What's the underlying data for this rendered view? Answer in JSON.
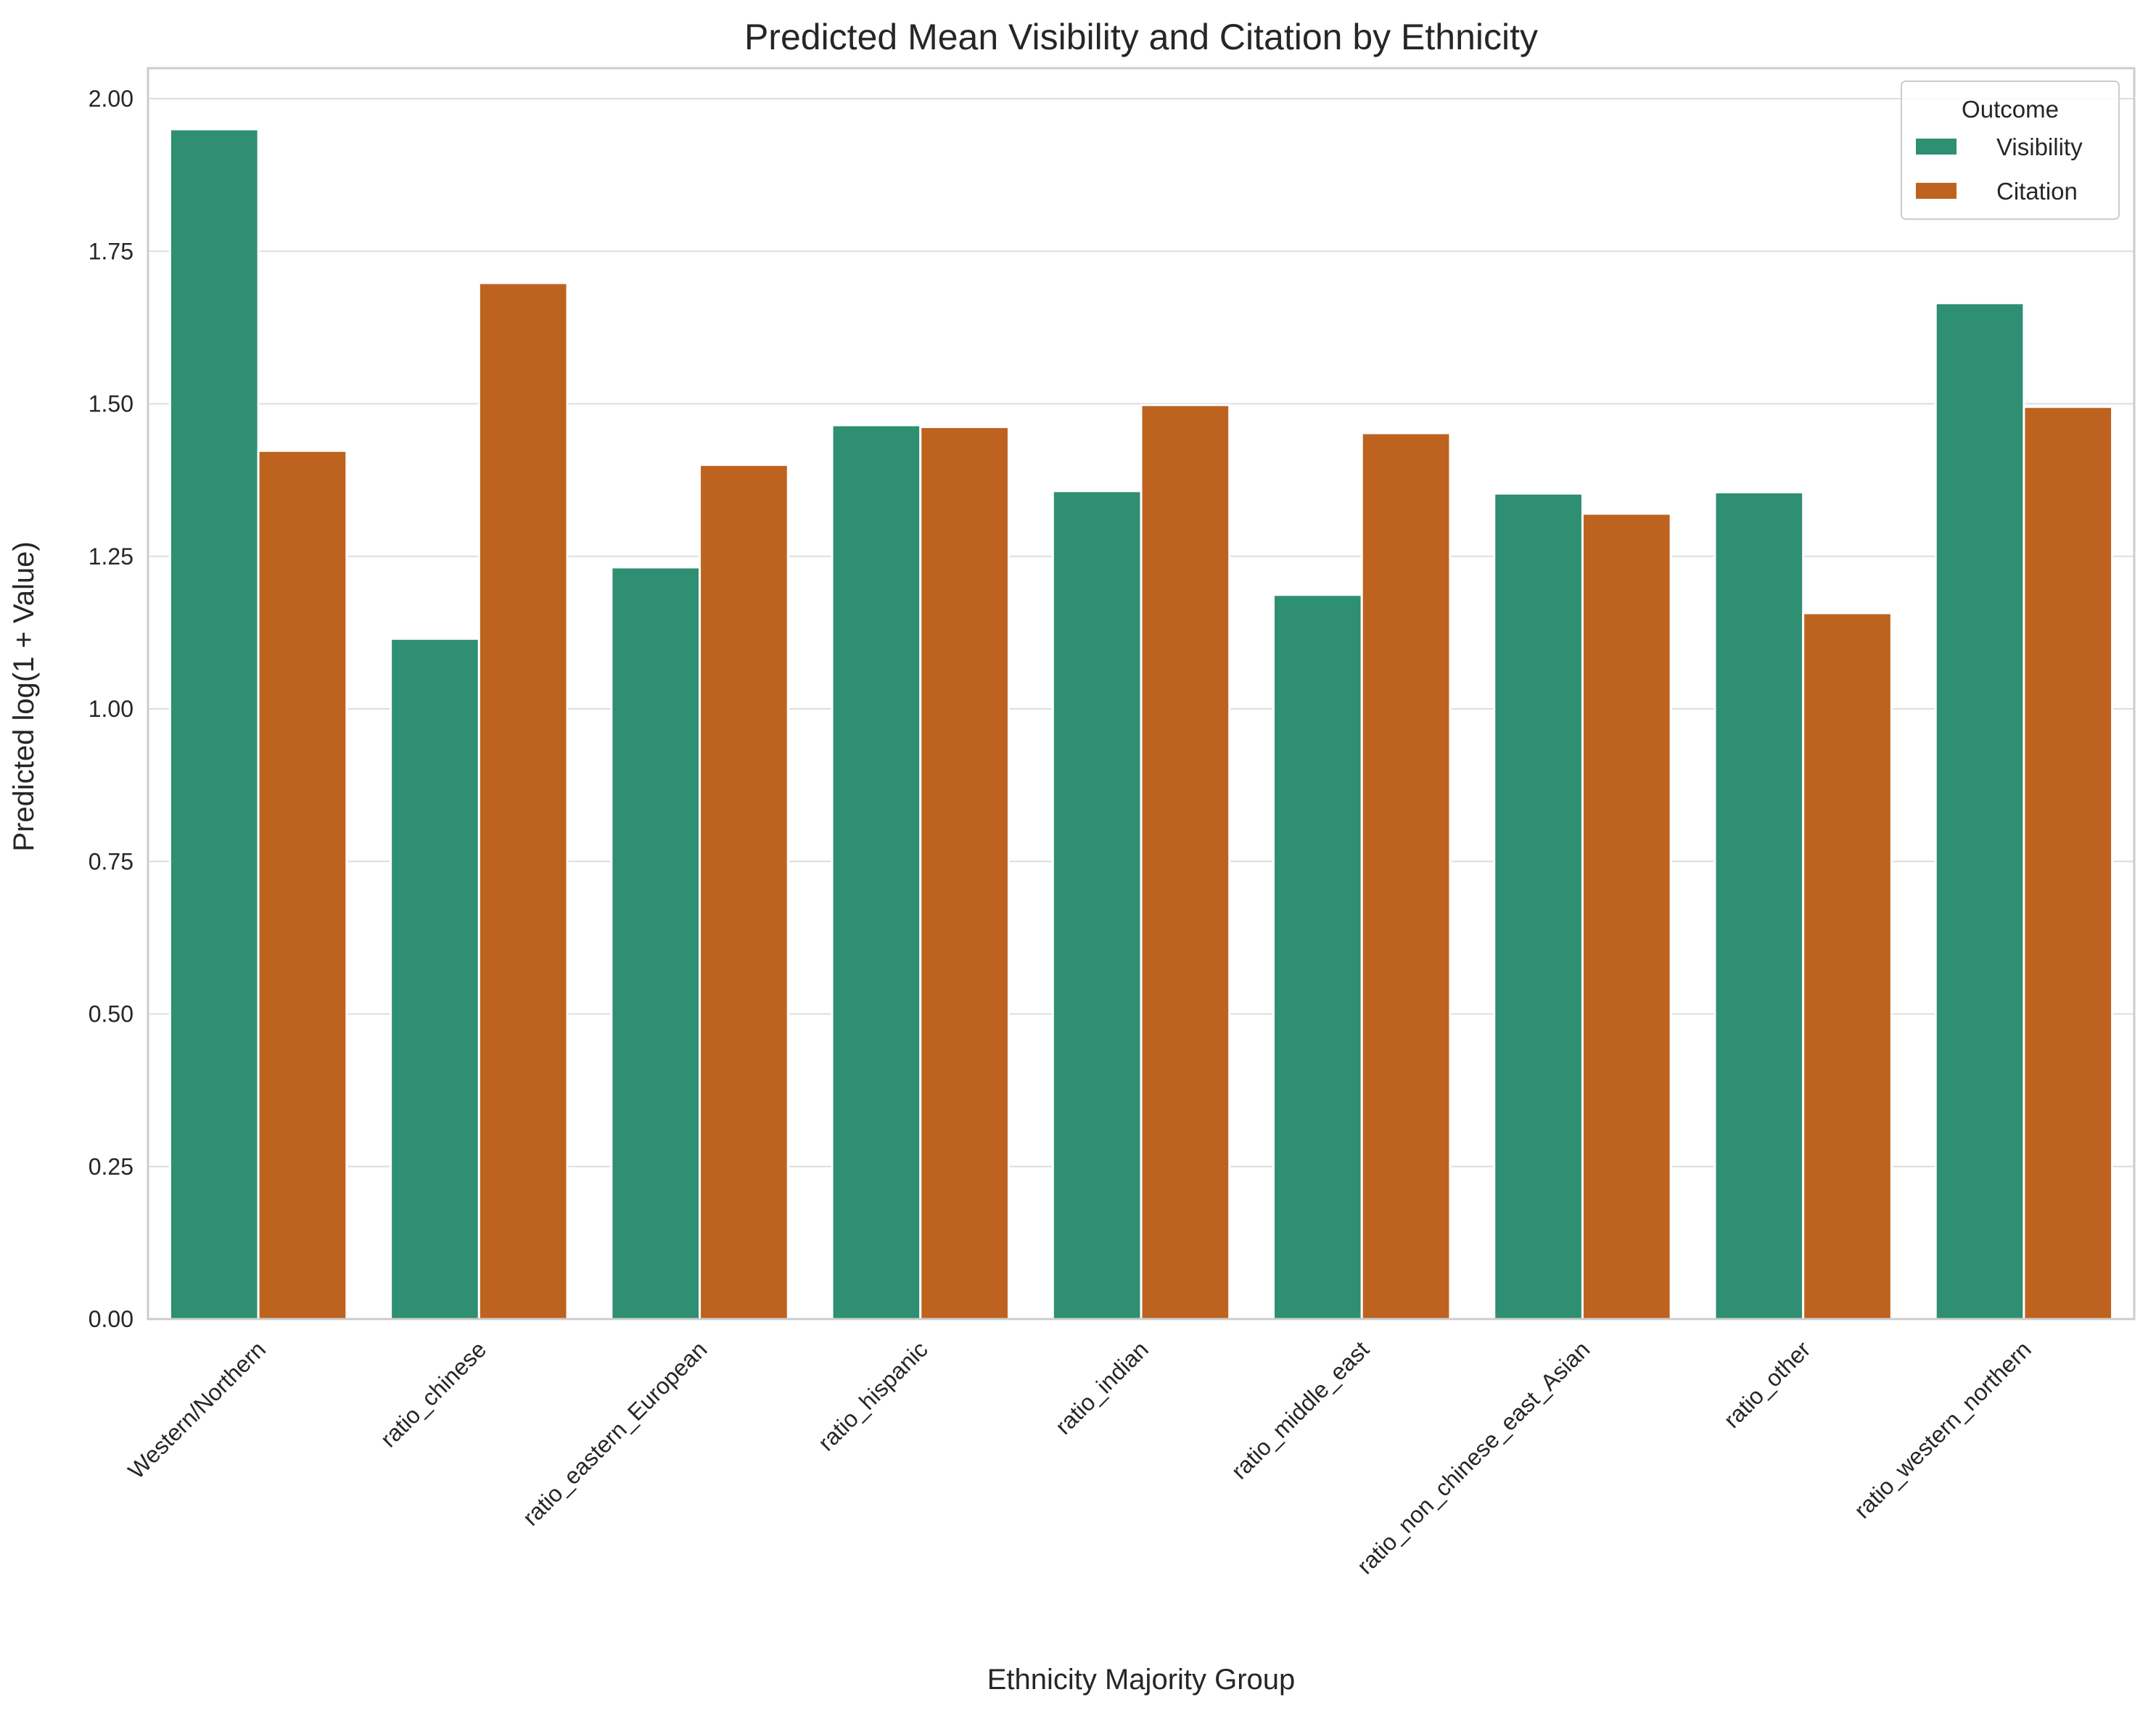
{
  "chart_data": {
    "type": "bar",
    "title": "Predicted Mean Visibility and Citation by Ethnicity",
    "xlabel": "Ethnicity Majority Group",
    "ylabel": "Predicted log(1 + Value)",
    "ylim": [
      0,
      2.05
    ],
    "yticks": [
      "0.00",
      "0.25",
      "0.50",
      "0.75",
      "1.00",
      "1.25",
      "1.50",
      "1.75",
      "2.00"
    ],
    "grid": "horizontal",
    "categories": [
      "Western/Northern",
      "ratio_chinese",
      "ratio_eastern_European",
      "ratio_hispanic",
      "ratio_indian",
      "ratio_middle_east",
      "ratio_non_chinese_east_Asian",
      "ratio_other",
      "ratio_western_northern"
    ],
    "series": [
      {
        "name": "Visibility",
        "color": "#2e8f72",
        "values": [
          1.95,
          1.115,
          1.232,
          1.465,
          1.357,
          1.187,
          1.353,
          1.355,
          1.665
        ]
      },
      {
        "name": "Citation",
        "color": "#bd631f",
        "values": [
          1.423,
          1.698,
          1.4,
          1.462,
          1.498,
          1.452,
          1.32,
          1.157,
          1.495
        ]
      }
    ],
    "legend": {
      "title": "Outcome",
      "placement": "top-right"
    }
  }
}
